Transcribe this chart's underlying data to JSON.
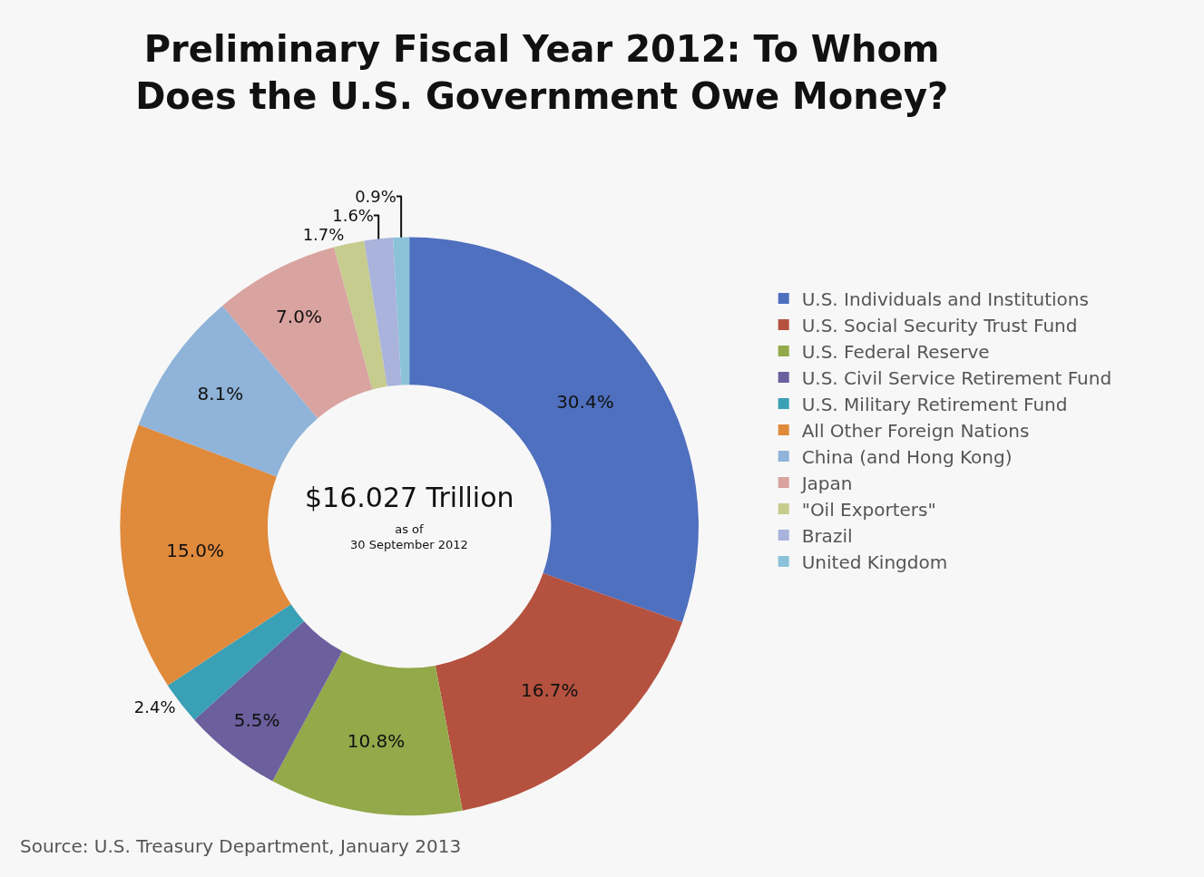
{
  "chart_data": {
    "type": "donut",
    "title": "Preliminary Fiscal Year 2012: To Whom\nDoes the U.S. Government Owe Money?",
    "categories": [
      "U.S. Individuals and Institutions",
      "U.S. Social Security Trust Fund",
      "U.S. Federal Reserve",
      "U.S. Civil Service Retirement Fund",
      "U.S. Military Retirement Fund",
      "All Other Foreign Nations",
      "China (and Hong Kong)",
      "Japan",
      "\"Oil Exporters\"",
      "Brazil",
      "United Kingdom"
    ],
    "values": [
      30.4,
      16.7,
      10.8,
      5.5,
      2.4,
      15.0,
      8.1,
      7.0,
      1.7,
      1.6,
      0.9
    ],
    "colors": [
      "#4f6fbf",
      "#b5513f",
      "#93a94a",
      "#6b5f9e",
      "#3aa0b5",
      "#e08a3c",
      "#8fb3d9",
      "#d9a3a0",
      "#c6cc8e",
      "#a9b3dc",
      "#8cc2d8"
    ],
    "value_labels": [
      "30.4%",
      "16.7%",
      "10.8%",
      "5.5%",
      "2.4%",
      "15.0%",
      "8.1%",
      "7.0%",
      "1.7%",
      "1.6%",
      "0.9%"
    ],
    "legend": "right",
    "annotations": [
      "$16.027 Trillion",
      "as of\n30 September 2012",
      "Source: U.S. Treasury Department, January 2013"
    ]
  }
}
